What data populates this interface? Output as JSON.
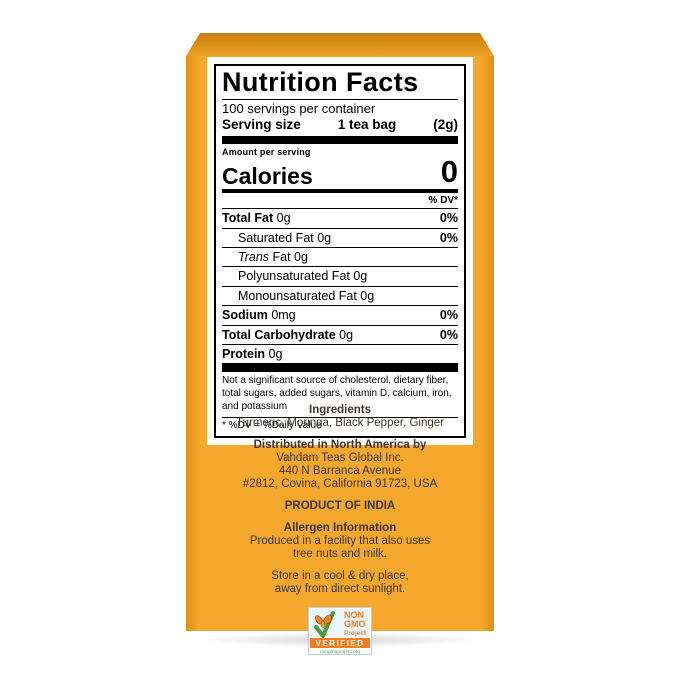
{
  "nutrition": {
    "title": "Nutrition Facts",
    "servings_per_container": "100 servings per container",
    "serving_size_label": "Serving size",
    "serving_size_qty": "1 tea bag",
    "serving_size_weight": "(2g)",
    "amount_per_serving": "Amount per serving",
    "calories_label": "Calories",
    "calories_value": "0",
    "dv_header": "% DV*",
    "rows": [
      {
        "parts": [
          {
            "t": "Total Fat",
            "b": 1
          },
          {
            "t": " 0g"
          }
        ],
        "dv": "0%",
        "indent": 0
      },
      {
        "parts": [
          {
            "t": "Saturated Fat 0g"
          }
        ],
        "dv": "0%",
        "indent": 1
      },
      {
        "parts": [
          {
            "t": "Trans",
            "i": 1
          },
          {
            "t": " Fat 0g"
          }
        ],
        "dv": "",
        "indent": 1
      },
      {
        "parts": [
          {
            "t": "Polyunsaturated Fat 0g"
          }
        ],
        "dv": "",
        "indent": 1
      },
      {
        "parts": [
          {
            "t": "Monounsaturated Fat 0g"
          }
        ],
        "dv": "",
        "indent": 1
      },
      {
        "parts": [
          {
            "t": "Sodium",
            "b": 1
          },
          {
            "t": " 0mg"
          }
        ],
        "dv": "0%",
        "indent": 0
      },
      {
        "parts": [
          {
            "t": "Total Carbohydrate",
            "b": 1
          },
          {
            "t": " 0g"
          }
        ],
        "dv": "0%",
        "indent": 0
      },
      {
        "parts": [
          {
            "t": "Protein",
            "b": 1
          },
          {
            "t": " 0g"
          }
        ],
        "dv": "",
        "indent": 0
      }
    ],
    "footnote_lines": [
      "Not a significant source of cholesterol, dietary fiber,",
      "total sugars, added sugars, vitamin D, calcium, iron,",
      "and potassium"
    ],
    "dv_note": "* %DV = %Daily Value"
  },
  "info_blocks": [
    {
      "title": "Ingredients",
      "lines": [
        "Turmeric, Moringa, Black Pepper, Ginger"
      ]
    },
    {
      "title": "Distributed in North America by",
      "lines": [
        "Vahdam Teas Global Inc.",
        "440 N Barranca Avenue",
        "#2812, Covina, California 91723, USA"
      ]
    },
    {
      "title": "PRODUCT OF INDIA",
      "lines": []
    },
    {
      "title": "Allergen Information",
      "lines": [
        "Produced in a facility that also uses",
        "tree nuts and milk."
      ]
    },
    {
      "title": "",
      "lines": [
        "Store in a cool & dry place,",
        "away from direct sunlight."
      ]
    }
  ],
  "non_gmo": {
    "line1": "NON",
    "line2": "GMO",
    "line3": "Project",
    "verified": "VERIFIED",
    "url": "nongmoproject.org"
  },
  "colors": {
    "box_face": "#f6a82c",
    "box_edge_dark": "#e19015",
    "box_top_dark": "#c5800e",
    "label_background": "#ffffff",
    "label_text": "#000000",
    "info_text": "#3c362c",
    "gmo_orange": "#f47c20",
    "gmo_green": "#4c9b3b",
    "gmo_sky": "#eef6fc"
  }
}
